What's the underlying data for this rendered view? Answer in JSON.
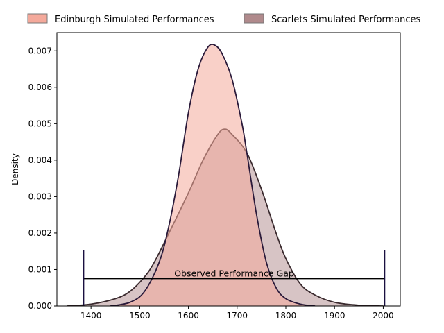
{
  "chart_data": {
    "type": "area",
    "title": "",
    "xlabel": "",
    "ylabel": "Density",
    "xlim": [
      1330,
      2035
    ],
    "ylim": [
      0,
      0.0075
    ],
    "grid": false,
    "legend_position": "top (above plot, horizontal)",
    "x_ticks": [
      1400,
      1500,
      1600,
      1700,
      1800,
      1900,
      2000
    ],
    "y_ticks": [
      0.0,
      0.001,
      0.002,
      0.003,
      0.004,
      0.005,
      0.006,
      0.007
    ],
    "x_tick_labels": [
      "1400",
      "1500",
      "1600",
      "1700",
      "1800",
      "1900",
      "2000"
    ],
    "y_tick_labels": [
      "0.000",
      "0.001",
      "0.002",
      "0.003",
      "0.004",
      "0.005",
      "0.006",
      "0.007"
    ],
    "series": [
      {
        "name": "Edinburgh Simulated Performances",
        "color": "#f4a99b",
        "line_color": "#2a1a3a",
        "x": [
          1440,
          1480,
          1510,
          1540,
          1560,
          1580,
          1600,
          1620,
          1640,
          1655,
          1670,
          1690,
          1710,
          1720,
          1740,
          1760,
          1780,
          1800,
          1830,
          1860
        ],
        "values": [
          0.0,
          0.0001,
          0.0004,
          0.0012,
          0.0022,
          0.0036,
          0.0053,
          0.0065,
          0.0071,
          0.00715,
          0.0069,
          0.0062,
          0.005,
          0.0042,
          0.0025,
          0.0012,
          0.0005,
          0.0002,
          5e-05,
          0.0
        ]
      },
      {
        "name": "Scarlets Simulated Performances",
        "color": "#b08a8c",
        "line_color": "#3a2a2e",
        "x": [
          1350,
          1400,
          1450,
          1480,
          1510,
          1530,
          1560,
          1600,
          1630,
          1660,
          1675,
          1690,
          1720,
          1750,
          1780,
          1800,
          1830,
          1860,
          1900,
          1950,
          2000
        ],
        "values": [
          0.0,
          5e-05,
          0.0002,
          0.0004,
          0.0008,
          0.0012,
          0.002,
          0.0031,
          0.004,
          0.0047,
          0.00485,
          0.0047,
          0.0042,
          0.0032,
          0.002,
          0.0013,
          0.0006,
          0.0003,
          0.0001,
          2e-05,
          0.0
        ]
      }
    ],
    "annotation": {
      "label": "Observed Performance Gap",
      "x_start": 1385,
      "x_end": 2003,
      "y": 0.00075,
      "cap_top": 0.00153
    }
  }
}
